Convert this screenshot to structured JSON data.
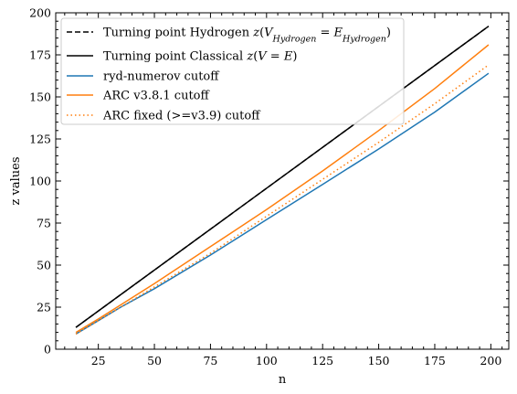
{
  "chart_data": {
    "type": "line",
    "xlabel": "n",
    "ylabel": "z values",
    "xlim": [
      6,
      208
    ],
    "ylim": [
      0,
      200
    ],
    "xticks": [
      25,
      50,
      75,
      100,
      125,
      150,
      175,
      200
    ],
    "yticks": [
      0,
      25,
      50,
      75,
      100,
      125,
      150,
      175,
      200
    ],
    "legend_placement": "top-left",
    "grid": false,
    "series": [
      {
        "name": "Turning point Hydrogen",
        "legend": {
          "prefix": "Turning point Hydrogen ",
          "math": [
            {
              "t": "z",
              "i": true
            },
            {
              "t": "("
            },
            {
              "t": "V",
              "i": true
            },
            {
              "t": "Hydrogen",
              "i": true,
              "sub": true
            },
            {
              "t": " = "
            },
            {
              "t": "E",
              "i": true
            },
            {
              "t": "Hydrogen",
              "i": true,
              "sub": true
            },
            {
              "t": ")"
            }
          ]
        },
        "color": "#000000",
        "style": "dashed",
        "x": [
          15,
          199
        ],
        "y": [
          13,
          192
        ]
      },
      {
        "name": "Turning point Classical",
        "legend": {
          "prefix": "Turning point Classical ",
          "math": [
            {
              "t": "z",
              "i": true
            },
            {
              "t": "("
            },
            {
              "t": "V",
              "i": true
            },
            {
              "t": " = "
            },
            {
              "t": "E",
              "i": true
            },
            {
              "t": ")"
            }
          ]
        },
        "color": "#000000",
        "style": "solid",
        "x": [
          15,
          199
        ],
        "y": [
          13,
          192
        ]
      },
      {
        "name": "ryd-numerov cutoff",
        "color": "#1f77b4",
        "style": "solid",
        "x": [
          15,
          25,
          35,
          50,
          75,
          100,
          125,
          150,
          175,
          199
        ],
        "y": [
          9,
          17,
          25,
          36,
          56,
          77,
          98,
          119,
          141,
          164
        ]
      },
      {
        "name": "ARC v3.8.1 cutoff",
        "color": "#ff7f0e",
        "style": "solid",
        "x": [
          15,
          25,
          50,
          75,
          100,
          125,
          150,
          175,
          199
        ],
        "y": [
          10,
          18,
          39,
          61,
          83,
          106,
          130,
          155,
          181
        ]
      },
      {
        "name": "ARC fixed (>=v3.9) cutoff",
        "color": "#ff7f0e",
        "style": "dotted",
        "x": [
          15,
          25,
          35,
          50,
          75,
          100,
          125,
          150,
          175,
          199
        ],
        "y": [
          9,
          17,
          25,
          37,
          57,
          79,
          101,
          123,
          146,
          169
        ]
      }
    ]
  }
}
